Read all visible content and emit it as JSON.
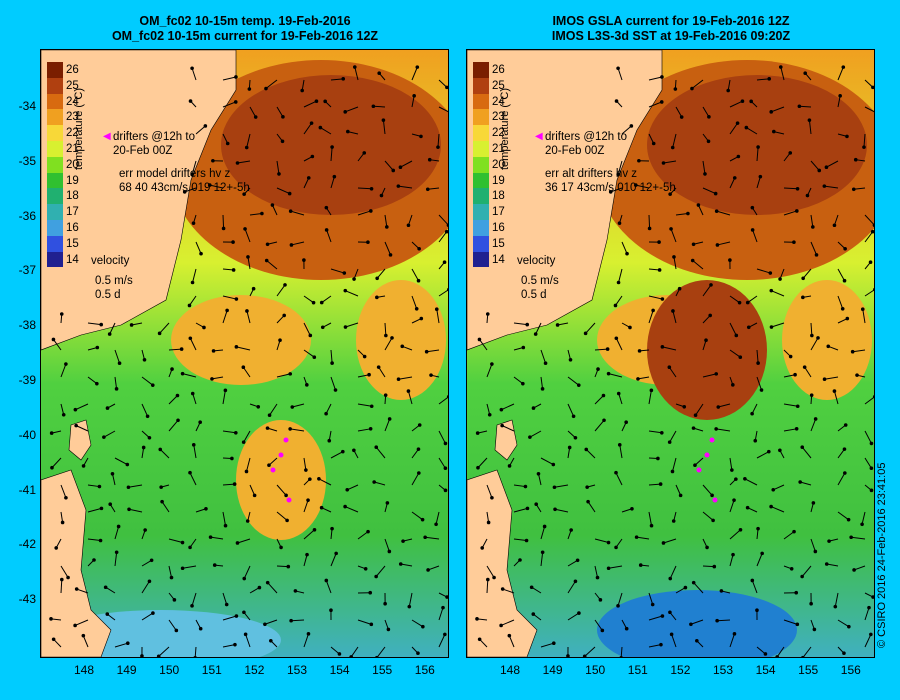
{
  "left_title": [
    "OM_fc02 10-15m temp. 19-Feb-2016",
    "OM_fc02 10-15m current for 19-Feb-2016 12Z"
  ],
  "right_title": [
    "IMOS GSLA current for 19-Feb-2016 12Z",
    "IMOS L3S-3d SST at 19-Feb-2016 09:20Z"
  ],
  "y_ticks": [
    "-34",
    "-35",
    "-36",
    "-37",
    "-38",
    "-39",
    "-40",
    "-41",
    "-42",
    "-43"
  ],
  "x_ticks": [
    "148",
    "149",
    "150",
    "151",
    "152",
    "153",
    "154",
    "155",
    "156"
  ],
  "colorbar": {
    "labels": [
      "26",
      "25",
      "24",
      "23",
      "22",
      "21",
      "20",
      "19",
      "18",
      "17",
      "16",
      "15",
      "14"
    ],
    "title": "temperature (°C)",
    "colors": [
      "#7a1e00",
      "#b04010",
      "#d86a10",
      "#f0a020",
      "#f8d838",
      "#d8f030",
      "#80e020",
      "#30c030",
      "#20b070",
      "#30b0b0",
      "#40a0e0",
      "#3050e0",
      "#202090"
    ]
  },
  "left_panel": {
    "drifters": [
      "drifters @12h to",
      "20-Feb 00Z"
    ],
    "err": [
      "err model drifters hv z",
      "68 40 43cm/s 019 12+-5h"
    ],
    "velocity": "velocity",
    "vel_scale": [
      "0.5 m/s",
      "0.5 d"
    ]
  },
  "right_panel": {
    "drifters": [
      "drifters @12h to",
      "20-Feb 00Z"
    ],
    "err": [
      "err alt drifters hv z",
      "36 17 43cm/s 010 12+-5h"
    ],
    "velocity": "velocity",
    "vel_scale": [
      "0.5 m/s",
      "0.5 d"
    ]
  },
  "credit": "© CSIRO 2016  24-Feb-2016 23:41:05",
  "colors": {
    "background": "#00ccff",
    "land": "#ffcc99",
    "drifter": "#ff00ff"
  }
}
